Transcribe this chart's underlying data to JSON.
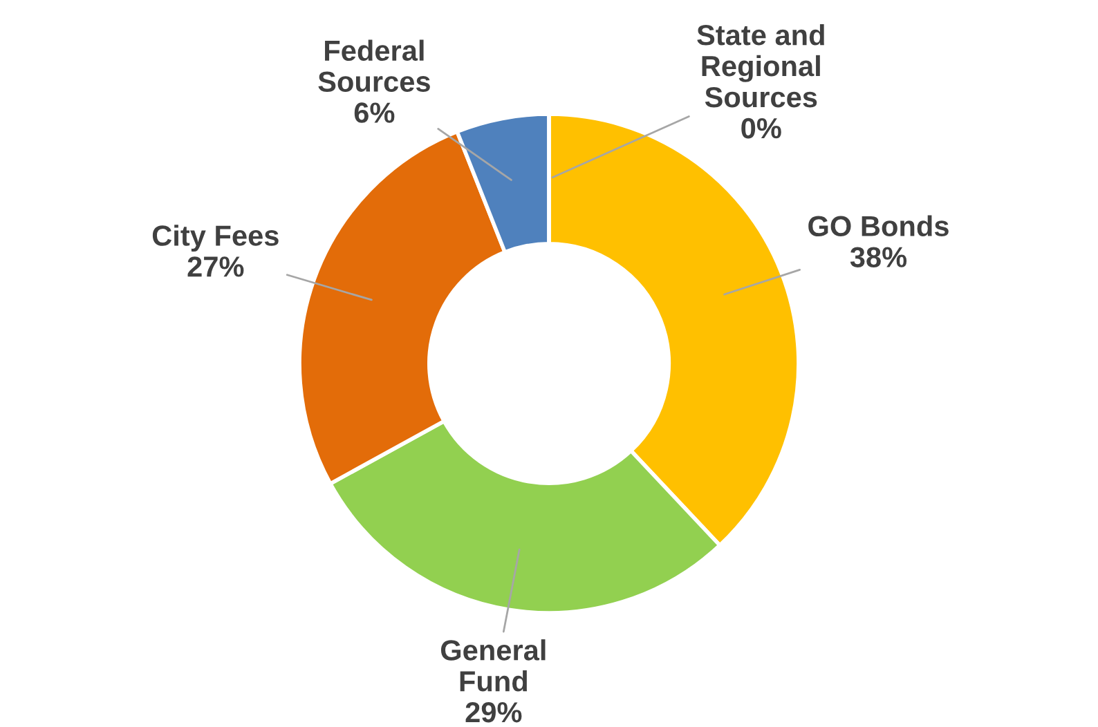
{
  "chart_data": {
    "type": "donut",
    "categories": [
      "GO Bonds",
      "General\nFund",
      "City Fees",
      "Federal\nSources",
      "State and\nRegional\nSources"
    ],
    "values": [
      38,
      29,
      27,
      6,
      0
    ],
    "value_labels": [
      "38%",
      "29%",
      "27%",
      "6%",
      "0%"
    ],
    "colors": [
      "#ffc000",
      "#92d050",
      "#e36c09",
      "#4f81bd",
      "#264478"
    ],
    "legend": false
  }
}
